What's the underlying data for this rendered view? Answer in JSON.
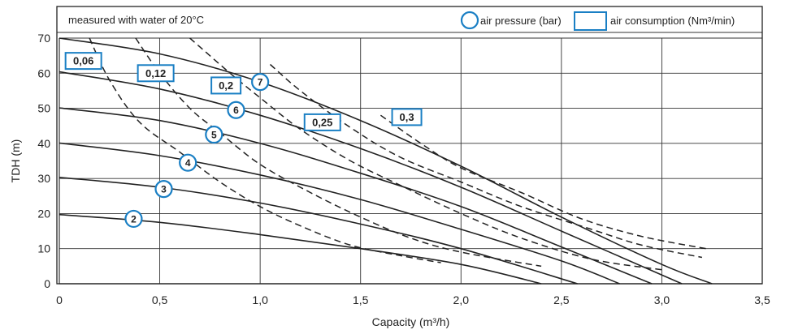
{
  "chart_data": {
    "type": "line",
    "note": "measured with water of 20°C",
    "xlabel": "Capacity (m³/h)",
    "ylabel": "TDH (m)",
    "xlim": [
      0,
      3.5
    ],
    "ylim": [
      0,
      70
    ],
    "x_ticks": [
      0,
      0.5,
      1.0,
      1.5,
      2.0,
      2.5,
      3.0,
      3.5
    ],
    "x_tick_labels": [
      "0",
      "0,5",
      "1,0",
      "1,5",
      "2,0",
      "2,5",
      "3,0",
      "3,5"
    ],
    "y_ticks": [
      0,
      10,
      20,
      30,
      40,
      50,
      60,
      70
    ],
    "y_tick_labels": [
      "0",
      "10",
      "20",
      "30",
      "40",
      "50",
      "60",
      "70"
    ],
    "grid": true,
    "legend": {
      "placement": "top-right",
      "items": [
        {
          "label": "air pressure (bar)",
          "symbol": "circle"
        },
        {
          "label": "air consumption (Nm³/min)",
          "symbol": "rectangle"
        }
      ]
    },
    "colors": {
      "accent": "#1a7fc4",
      "curve": "#222222",
      "grid": "#333333"
    },
    "pressure_curves": [
      {
        "label": "2",
        "marker_at": [
          0.37,
          18.5
        ],
        "points": [
          [
            0,
            19.7
          ],
          [
            0.5,
            17.5
          ],
          [
            1.0,
            14.0
          ],
          [
            1.5,
            10.0
          ],
          [
            2.0,
            5.5
          ],
          [
            2.4,
            0
          ]
        ]
      },
      {
        "label": "3",
        "marker_at": [
          0.52,
          27.0
        ],
        "points": [
          [
            0,
            30.3
          ],
          [
            0.5,
            27.5
          ],
          [
            1.0,
            23.0
          ],
          [
            1.5,
            17.0
          ],
          [
            2.0,
            10.0
          ],
          [
            2.58,
            0
          ]
        ]
      },
      {
        "label": "4",
        "marker_at": [
          0.64,
          34.5
        ],
        "points": [
          [
            0,
            40.1
          ],
          [
            0.5,
            36.5
          ],
          [
            1.0,
            31.0
          ],
          [
            1.5,
            24.0
          ],
          [
            2.0,
            15.5
          ],
          [
            2.5,
            6.5
          ],
          [
            2.79,
            0
          ]
        ]
      },
      {
        "label": "5",
        "marker_at": [
          0.77,
          42.5
        ],
        "points": [
          [
            0,
            50.1
          ],
          [
            0.5,
            46.5
          ],
          [
            1.0,
            40.0
          ],
          [
            1.5,
            31.5
          ],
          [
            2.0,
            22.0
          ],
          [
            2.5,
            10.5
          ],
          [
            2.95,
            0
          ]
        ]
      },
      {
        "label": "6",
        "marker_at": [
          0.88,
          49.5
        ],
        "points": [
          [
            0,
            60.4
          ],
          [
            0.5,
            55.5
          ],
          [
            1.0,
            48.0
          ],
          [
            1.5,
            38.5
          ],
          [
            2.0,
            27.5
          ],
          [
            2.5,
            15.0
          ],
          [
            3.1,
            0
          ]
        ]
      },
      {
        "label": "7",
        "marker_at": [
          1.0,
          57.5
        ],
        "points": [
          [
            0,
            70.0
          ],
          [
            0.5,
            65.5
          ],
          [
            1.0,
            57.5
          ],
          [
            1.5,
            46.5
          ],
          [
            2.0,
            33.5
          ],
          [
            2.5,
            19.0
          ],
          [
            3.0,
            5.5
          ],
          [
            3.25,
            0
          ]
        ]
      }
    ],
    "consumption_curves": [
      {
        "label": "0,06",
        "tag_at": [
          0.12,
          63.5
        ],
        "points": [
          [
            0.15,
            70.0
          ],
          [
            0.25,
            58.0
          ],
          [
            0.4,
            46.0
          ],
          [
            0.6,
            37.5
          ],
          [
            0.8,
            29.0
          ],
          [
            1.0,
            22.0
          ],
          [
            1.2,
            16.5
          ],
          [
            1.45,
            11.0
          ],
          [
            1.7,
            8.0
          ],
          [
            1.9,
            6.0
          ]
        ]
      },
      {
        "label": "0,12",
        "tag_at": [
          0.48,
          60.0
        ],
        "points": [
          [
            0.38,
            70.0
          ],
          [
            0.5,
            60.0
          ],
          [
            0.65,
            50.0
          ],
          [
            0.8,
            43.0
          ],
          [
            1.0,
            34.0
          ],
          [
            1.25,
            26.0
          ],
          [
            1.5,
            19.0
          ],
          [
            1.75,
            13.0
          ],
          [
            2.0,
            9.0
          ],
          [
            2.4,
            5.0
          ]
        ]
      },
      {
        "label": "0,2",
        "tag_at": [
          0.83,
          56.5
        ],
        "points": [
          [
            0.65,
            70.0
          ],
          [
            0.85,
            60.0
          ],
          [
            1.0,
            53.0
          ],
          [
            1.2,
            44.0
          ],
          [
            1.45,
            35.0
          ],
          [
            1.7,
            28.0
          ],
          [
            2.0,
            20.0
          ],
          [
            2.3,
            13.0
          ],
          [
            2.65,
            7.0
          ],
          [
            3.0,
            4.0
          ]
        ]
      },
      {
        "label": "0,25",
        "tag_at": [
          1.31,
          46.0
        ],
        "points": [
          [
            1.05,
            62.5
          ],
          [
            1.2,
            55.0
          ],
          [
            1.45,
            44.5
          ],
          [
            1.7,
            36.0
          ],
          [
            2.0,
            29.0
          ],
          [
            2.3,
            22.0
          ],
          [
            2.65,
            15.5
          ],
          [
            2.9,
            11.0
          ],
          [
            3.2,
            7.5
          ]
        ]
      },
      {
        "label": "0,3",
        "tag_at": [
          1.73,
          47.5
        ],
        "points": [
          [
            1.6,
            48.0
          ],
          [
            1.8,
            40.0
          ],
          [
            2.0,
            33.0
          ],
          [
            2.3,
            26.0
          ],
          [
            2.6,
            18.5
          ],
          [
            2.9,
            13.5
          ],
          [
            3.22,
            10.0
          ]
        ]
      }
    ]
  }
}
